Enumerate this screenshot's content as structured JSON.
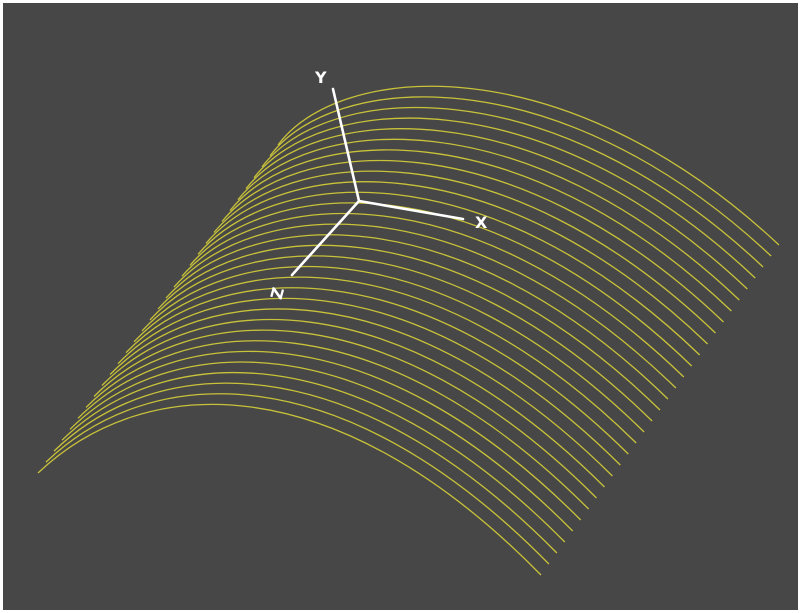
{
  "viewport": {
    "background_color": "#474747",
    "border_color": "#ffffff"
  },
  "surface": {
    "description_type": "wireframe-curve-family",
    "curve_color": "#c8c23a",
    "curve_count": 31
  },
  "axes": {
    "color": "#ffffff",
    "x_label": "X",
    "y_label": "Y",
    "z_label": "Z"
  }
}
